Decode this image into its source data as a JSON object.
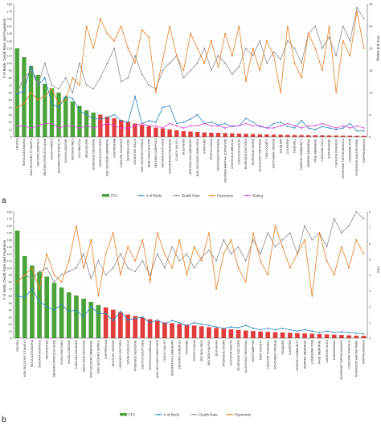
{
  "figure": {
    "panel_labels": [
      "a",
      "b"
    ]
  },
  "chart_data": [
    {
      "type": "bar",
      "panel": "a",
      "ylabel": "# of Beds, Death Rate and Payments",
      "y2label": "FF4 and Rating",
      "ylim": [
        0,
        180
      ],
      "y2lim": [
        0,
        30
      ],
      "yticks": [
        0,
        10,
        20,
        30,
        40,
        50,
        60,
        70,
        80,
        90,
        100,
        110,
        120,
        130,
        140,
        150,
        160,
        170,
        180
      ],
      "y2ticks": [
        0,
        5,
        10,
        15,
        20,
        25,
        30
      ],
      "legend_position": "bottom",
      "legend": [
        {
          "name": "FF4",
          "color": "#4aa33a",
          "kind": "bar"
        },
        {
          "name": "# of Beds",
          "color": "#2e86c1",
          "kind": "line"
        },
        {
          "name": "Death Rate",
          "color": "#8e8e8e",
          "kind": "line"
        },
        {
          "name": "Payments",
          "color": "#e67e22",
          "kind": "line"
        },
        {
          "name": "Rating",
          "color": "#d63fd6",
          "kind": "line"
        }
      ],
      "categories": [
        "CENTRA",
        "INOVA ALEXANDRIA",
        "BON SECOURS ST MARYS",
        "SENTARA NORFOLK",
        "SENTARA PRINCESS ANNE",
        "INOVA FAIRFAX",
        "SENTARA NORTHERN VA",
        "INOVA LOUDOUN",
        "SENTARA OBICI",
        "VCU MEDICAL",
        "WINCHESTER",
        "RIVERSIDE REGIONAL",
        "HENRICO DOCTORS",
        "BON SECOURS MEMORIAL",
        "CHIPPENHAM",
        "CARILION ROANOKE",
        "SENTARA LEIGH",
        "JOHNSTON WILLIS",
        "BON SECOURS DEPAUL",
        "MARY WASHINGTON",
        "SENTARA CAREPLEX",
        "CENTRA SOUTHSIDE",
        "CHESAPEAKE REGIONAL",
        "CLINCH VALLEY",
        "BUCHANAN",
        "SENTARA WILLIAMSBURG",
        "BON SECOURS MARYVIEW",
        "STAFFORD",
        "SPOTSYLVANIA",
        "SOUTHSIDE REGIONAL",
        "SENTARA MARTHA JEFFERSON",
        "LEWISGALE MEDICAL",
        "AUGUSTA HEALTH",
        "RIVERSIDE DOCTORS",
        "RIVERSIDE SHORE",
        "ALLEGHANY REGIONAL",
        "TWIN COUNTY",
        "SOUTHERN VIRGINIA",
        "FAUQUIER",
        "CULPEPER",
        "TAZEWELL",
        "NORTON COMMUNITY",
        "WARREN MEMORIAL",
        "PAGE MEMORIAL",
        "CARILION GILES",
        "SHENANDOAH",
        "CARILION FRANKLIN",
        "RIVERSIDE TAPPAHANNOCK",
        "LONESOME PINE",
        "RIVERSIDE WALTER REED",
        "RAPPAHANNOCK"
      ],
      "series": [
        {
          "name": "FF4",
          "values": [
            20,
            18,
            16,
            14,
            12,
            11,
            10,
            9,
            8,
            7,
            6,
            5.5,
            5,
            4.6,
            4.2,
            3.8,
            3.4,
            3.0,
            2.7,
            2.4,
            2.1,
            1.9,
            1.7,
            1.5,
            1.3,
            1.2,
            1.1,
            1.0,
            0.95,
            0.9,
            0.85,
            0.8,
            0.75,
            0.7,
            0.65,
            0.6,
            0.55,
            0.5,
            0.48,
            0.45,
            0.42,
            0.4,
            0.38,
            0.36,
            0.34,
            0.32,
            0.3,
            0.28,
            0.26,
            0.25,
            0.24
          ]
        },
        {
          "name": "# of Beds",
          "values": [
            58,
            62,
            96,
            70,
            80,
            45,
            40,
            55,
            52,
            35,
            30,
            25,
            24,
            26,
            30,
            22,
            20,
            55,
            18,
            22,
            20,
            40,
            42,
            18,
            20,
            24,
            30,
            18,
            20,
            16,
            18,
            14,
            15,
            25,
            20,
            14,
            12,
            18,
            20,
            14,
            12,
            22,
            12,
            10,
            14,
            12,
            10,
            12,
            18,
            8,
            8
          ]
        },
        {
          "name": "Death Rate",
          "values": [
            60,
            80,
            90,
            70,
            100,
            70,
            65,
            80,
            60,
            100,
            70,
            65,
            80,
            100,
            120,
            75,
            80,
            110,
            85,
            70,
            65,
            90,
            100,
            110,
            80,
            90,
            100,
            120,
            90,
            110,
            100,
            85,
            95,
            120,
            110,
            130,
            100,
            115,
            105,
            130,
            120,
            100,
            140,
            150,
            120,
            135,
            110,
            150,
            130,
            175,
            160
          ]
        },
        {
          "name": "Payments",
          "values": [
            40,
            45,
            60,
            50,
            55,
            65,
            45,
            50,
            80,
            70,
            150,
            120,
            160,
            140,
            130,
            150,
            120,
            100,
            145,
            135,
            60,
            105,
            150,
            110,
            90,
            140,
            120,
            100,
            130,
            95,
            140,
            110,
            150,
            75,
            120,
            90,
            130,
            110,
            60,
            150,
            100,
            80,
            140,
            120,
            90,
            150,
            60,
            130,
            110,
            170,
            120
          ]
        },
        {
          "name": "Rating",
          "values": [
            2.5,
            2.5,
            2.0,
            2.5,
            3.0,
            3.0,
            2.0,
            2.5,
            2.5,
            2.0,
            2.5,
            2.0,
            2.5,
            3.0,
            2.5,
            2.0,
            2.0,
            2.5,
            3.0,
            2.5,
            2.5,
            2.0,
            3.0,
            2.5,
            2.0,
            2.5,
            2.5,
            3.0,
            2.5,
            2.5,
            2.0,
            2.5,
            2.5,
            3.0,
            2.5,
            2.5,
            2.0,
            2.0,
            2.5,
            3.0,
            2.5,
            2.0,
            2.5,
            2.5,
            3.0,
            2.5,
            2.0,
            2.5,
            2.0,
            2.5,
            2.0
          ]
        }
      ]
    },
    {
      "type": "bar",
      "panel": "b",
      "ylabel": "# of Beds, Death Rate and Payments",
      "y2label": "FF2",
      "ylim": [
        0,
        180
      ],
      "y2lim": [
        0,
        8
      ],
      "yticks": [
        0,
        10,
        20,
        30,
        40,
        50,
        60,
        70,
        80,
        90,
        100,
        110,
        120,
        130,
        140,
        150,
        160,
        170,
        180
      ],
      "y2ticks": [
        0,
        1,
        2,
        3,
        4,
        5,
        6,
        7,
        8
      ],
      "legend_position": "bottom",
      "legend": [
        {
          "name": "FF2",
          "color": "#4aa33a",
          "kind": "bar"
        },
        {
          "name": "# of Beds",
          "color": "#2e86c1",
          "kind": "line"
        },
        {
          "name": "Death Rate",
          "color": "#8e8e8e",
          "kind": "line"
        },
        {
          "name": "Payments",
          "color": "#e67e22",
          "kind": "line"
        }
      ],
      "categories": [
        "CENTRA",
        "BON SECOURS ST MARYS",
        "INOVA ALEXANDRIA",
        "SENTARA NORFOLK",
        "WINCHESTER",
        "SENTARA PRINCESS ANNE",
        "INOVA FAIR OAKS",
        "INOVA LOUDOUN",
        "CARILION ROANOKE",
        "SOUTHSIDE REGIONAL",
        "BON SECOURS MEMORIAL",
        "BON SECOURS DEPAUL",
        "CHIPPENHAM",
        "INOVA MT VERNON",
        "HENRICO DOCTORS",
        "SOVAH DANVILLE",
        "RIVERSIDE REGIONAL",
        "CENTRA SOUTHSIDE",
        "LEWISGALE MEDICAL",
        "BON SECOURS MARYVIEW",
        "CLINCH VALLEY",
        "SENTARA WILLIAMSBURG",
        "SENTARA CAREPLEX",
        "STAFFORD",
        "SPOTSYLVANIA",
        "SENTARA OBICI",
        "SENTARA HALIFAX",
        "BUCHANAN",
        "RIVERSIDE SHORE",
        "AUGUSTA HEALTH",
        "RIVERSIDE DOCTORS",
        "ALLEGHANY REGIONAL",
        "SOUTHAMPTON",
        "TWIN COUNTY",
        "CARILION TAZEWELL",
        "SOUTHERN VIRGINIA",
        "FAUQUIER",
        "CULPEPER",
        "NORTON COMMUNITY",
        "WARREN MEMORIAL",
        "LONESOME PINE",
        "PAGE MEMORIAL",
        "CARILION GILES",
        "SHENANDOAH",
        "RIVERSIDE TAPPAHANNOCK",
        "CARILION FRANKLIN",
        "RIVERSIDE WALTER REED",
        "RAPPAHANNOCK"
      ],
      "series": [
        {
          "name": "FF2",
          "values": [
            6.8,
            5.2,
            4.6,
            4.2,
            3.9,
            3.5,
            3.2,
            2.9,
            2.7,
            2.5,
            2.3,
            2.1,
            1.95,
            1.8,
            1.65,
            1.5,
            1.4,
            1.3,
            1.2,
            1.1,
            1.0,
            0.95,
            0.9,
            0.85,
            0.8,
            0.75,
            0.7,
            0.65,
            0.6,
            0.56,
            0.52,
            0.48,
            0.45,
            0.42,
            0.4,
            0.38,
            0.36,
            0.34,
            0.32,
            0.3,
            0.28,
            0.26,
            0.24,
            0.22,
            0.2,
            0.18,
            0.16,
            0.15
          ]
        },
        {
          "name": "# of Beds",
          "values": [
            60,
            58,
            70,
            52,
            45,
            40,
            48,
            38,
            40,
            30,
            45,
            35,
            35,
            25,
            38,
            26,
            28,
            30,
            22,
            26,
            20,
            25,
            22,
            18,
            22,
            20,
            18,
            16,
            14,
            16,
            15,
            18,
            14,
            12,
            14,
            12,
            14,
            12,
            10,
            12,
            10,
            8,
            10,
            8,
            9,
            8,
            7,
            6
          ]
        },
        {
          "name": "Death Rate",
          "values": [
            80,
            90,
            85,
            95,
            100,
            80,
            90,
            95,
            100,
            120,
            85,
            110,
            90,
            100,
            120,
            100,
            95,
            110,
            90,
            120,
            100,
            130,
            110,
            120,
            100,
            115,
            125,
            110,
            140,
            120,
            130,
            110,
            140,
            120,
            150,
            130,
            140,
            150,
            120,
            160,
            140,
            150,
            130,
            170,
            150,
            160,
            180,
            170
          ]
        },
        {
          "name": "Payments",
          "values": [
            80,
            90,
            100,
            70,
            120,
            90,
            80,
            110,
            160,
            100,
            140,
            60,
            120,
            150,
            90,
            130,
            110,
            140,
            80,
            150,
            120,
            100,
            140,
            90,
            130,
            110,
            150,
            70,
            120,
            140,
            100,
            80,
            150,
            110,
            90,
            160,
            130,
            100,
            120,
            140,
            60,
            150,
            110,
            90,
            130,
            100,
            140,
            120
          ]
        }
      ]
    }
  ]
}
